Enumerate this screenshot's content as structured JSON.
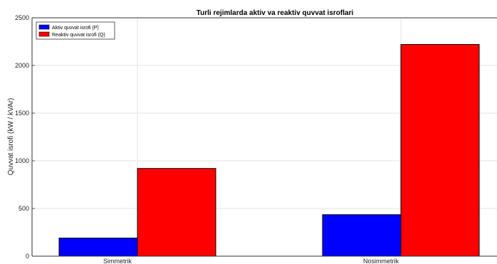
{
  "chart_data": {
    "type": "bar",
    "title": "Turli rejimlarda aktiv va reaktiv quvvat isroflari",
    "xlabel": "",
    "ylabel": "Quvvat isrofi (kW / kVAr)",
    "categories": [
      "Simmetrik",
      "Nosimmetrik"
    ],
    "series": [
      {
        "name": "Aktiv quvvat isrofi (P)",
        "values": [
          190,
          435
        ],
        "color": "#0000ff"
      },
      {
        "name": "Reaktiv quvvat isrofi (Q)",
        "values": [
          920,
          2220
        ],
        "color": "#ff0000"
      }
    ],
    "ylim": [
      0,
      2500
    ],
    "yticks": [
      "0",
      "500",
      "1000",
      "1500",
      "2000",
      "2500"
    ],
    "grid": true,
    "legend_position": "top-left"
  }
}
